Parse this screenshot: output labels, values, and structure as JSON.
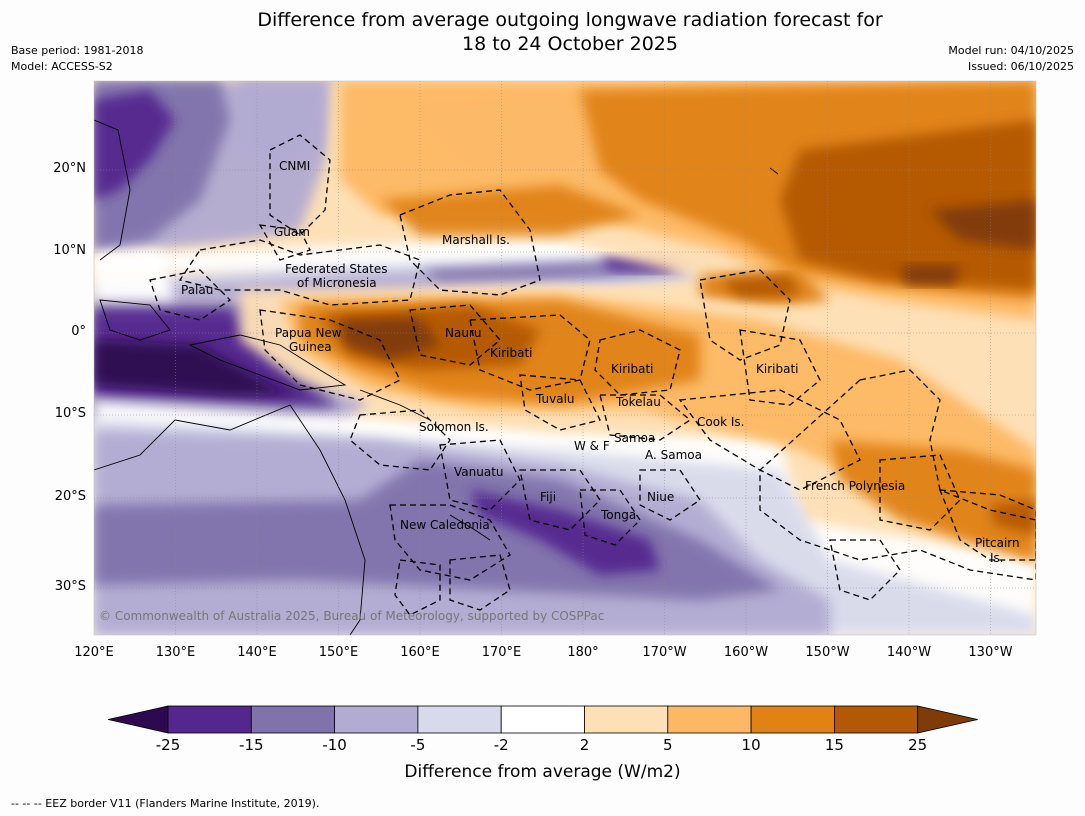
{
  "title_line1": "Difference from average outgoing longwave radiation forecast for",
  "title_line2": "18 to 24 October 2025",
  "base_period": "Base period: 1981-2018",
  "model": "Model: ACCESS-S2",
  "model_run": "Model run: 04/10/2025",
  "issued": "Issued: 06/10/2025",
  "lon_labels": [
    "120°E",
    "130°E",
    "140°E",
    "150°E",
    "160°E",
    "170°E",
    "180°",
    "170°W",
    "160°W",
    "150°W",
    "140°W",
    "130°W"
  ],
  "lat_labels": [
    "20°N",
    "10°N",
    "0°",
    "10°S",
    "20°S",
    "30°S"
  ],
  "places": {
    "cnmi": "CNMI",
    "guam": "Guam",
    "marshall": "Marshall Is.",
    "fsm1": "Federated States",
    "fsm2": "of Micronesia",
    "palau": "Palau",
    "png1": "Papua New",
    "png2": "Guinea",
    "nauru": "Nauru",
    "kiribati_w": "Kiribati",
    "kiribati_c": "Kiribati",
    "kiribati_e": "Kiribati",
    "tuvalu": "Tuvalu",
    "tokelau": "Tokelau",
    "cook": "Cook Is.",
    "solomon": "Solomon Is.",
    "wf": "W & F",
    "samoa": "Samoa",
    "asamoa": "A. Samoa",
    "vanuatu": "Vanuatu",
    "fiji": "Fiji",
    "niue": "Niue",
    "tonga": "Tonga",
    "french_polynesia": "French Polynesia",
    "new_caledonia": "New Caledonia",
    "pitcairn1": "Pitcairn",
    "pitcairn2": "Is."
  },
  "copyright": "© Commonwealth of Australia 2025, Bureau of Meteorology, supported by COSPPac",
  "colorbar": {
    "title": "Difference from average (W/m2)",
    "ticks": [
      "-25",
      "-15",
      "-10",
      "-5",
      "-2",
      "2",
      "5",
      "10",
      "15",
      "25"
    ],
    "colors": {
      "lt_neg25": "#2d0a4f",
      "neg25_neg15": "#54278f",
      "neg15_neg10": "#8073ac",
      "neg10_neg5": "#b2abd2",
      "neg5_neg2": "#d8daeb",
      "neg2_2": "#ffffff",
      "p2_5": "#fee0b6",
      "p5_10": "#fdb863",
      "p10_15": "#e08214",
      "p15_25": "#b35806",
      "gt25": "#7f3b08"
    }
  },
  "footer": "--  --  -- EEZ border V11 (Flanders Marine Institute, 2019)."
}
